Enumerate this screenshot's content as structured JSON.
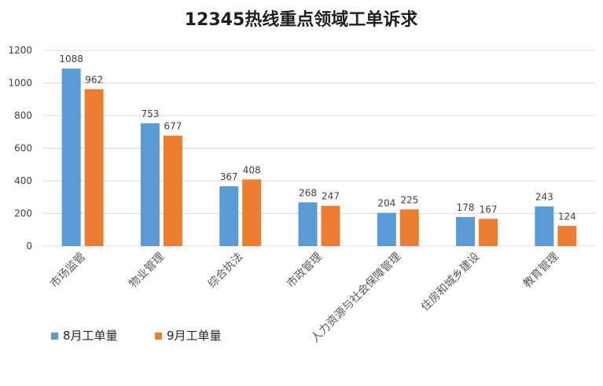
{
  "chart_data": {
    "type": "bar",
    "title": "12345热线重点领域工单诉求",
    "xlabel": "",
    "ylabel": "",
    "categories": [
      "市场监管",
      "物业管理",
      "综合执法",
      "市政管理",
      "人力资源与社会保障管理",
      "住房和城乡建设",
      "教育管理"
    ],
    "series": [
      {
        "name": "8月工单量",
        "color": "#5b9bd5",
        "values": [
          1088,
          753,
          367,
          268,
          204,
          178,
          243
        ]
      },
      {
        "name": "9月工单量",
        "color": "#ed7d31",
        "values": [
          962,
          677,
          408,
          247,
          225,
          167,
          124
        ]
      }
    ],
    "ylim": [
      0,
      1200
    ],
    "yticks": [
      0,
      200,
      400,
      600,
      800,
      1000,
      1200
    ],
    "grid": true,
    "legend_position": "bottom-left"
  }
}
